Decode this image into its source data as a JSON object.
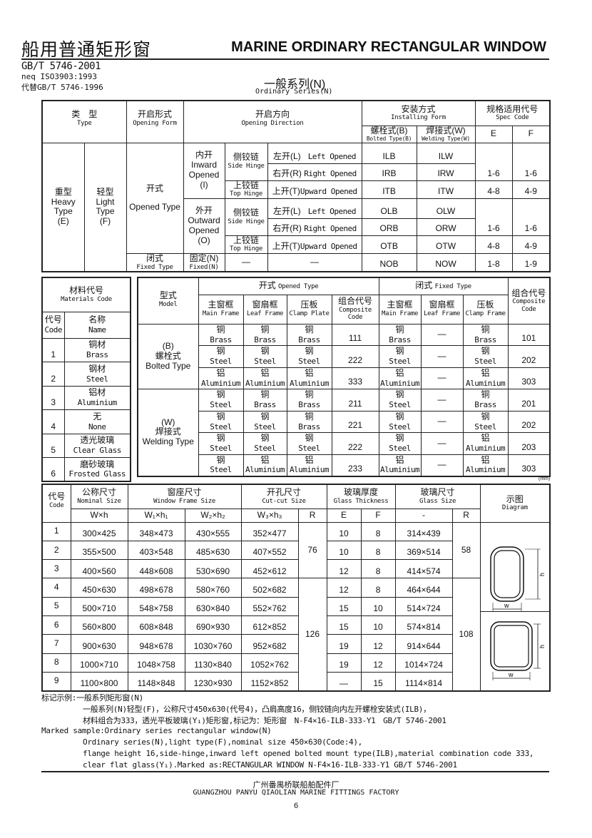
{
  "header": {
    "title_cn": "船用普通矩形窗",
    "title_en": "MARINE ORDINARY RECTANGULAR WINDOW",
    "standard": "GB/T 5746-2001",
    "neq": "neq ISO3903:1993",
    "replaces": "代替GB/T 5746-1996",
    "series_cn": "一般系列(N)",
    "series_en": "Ordinary Series(N)"
  },
  "type_table": {
    "head": {
      "type_cn": "类　型",
      "type_en": "Type",
      "form_cn": "开启形式",
      "form_en": "Opening Form",
      "dir_cn": "开启方向",
      "dir_en": "Opening Direction",
      "install_cn": "安装方式",
      "install_en": "Installing Form",
      "bolted_cn": "螺栓式(B)",
      "bolted_en": "Bolted Type(B)",
      "welding_cn": "焊接式(W)",
      "welding_en": "Welding Type(W)",
      "spec_cn": "规格适用代号",
      "spec_en": "Spec Code",
      "e": "E",
      "f": "F"
    },
    "heavy": [
      "重型",
      "Heavy",
      "Type",
      "(E)"
    ],
    "light": [
      "轻型",
      "Light",
      "Type",
      "(F)"
    ],
    "opened": {
      "cn": "开式",
      "en": "Opened Type"
    },
    "fixed": {
      "cn": "闭式",
      "en": "Fixed Type"
    },
    "inward": [
      "内开",
      "Inward",
      "Opened",
      "(I)"
    ],
    "outward": [
      "外开",
      "Outward",
      "Opened",
      "(O)"
    ],
    "side_hinge": {
      "cn": "侧铰链",
      "en": "Side Hinge"
    },
    "top_hinge": {
      "cn": "上铰链",
      "en": "Top Hinge"
    },
    "rows": [
      {
        "dir_cn": "左开(L)",
        "dir_en": "Left Opened",
        "b": "ILB",
        "w": "ILW"
      },
      {
        "dir_cn": "右开(R)",
        "dir_en": "Right Opened",
        "b": "IRB",
        "w": "IRW"
      },
      {
        "dir_cn": "上开(T)",
        "dir_en": "Upward Opened",
        "b": "ITB",
        "w": "ITW"
      },
      {
        "dir_cn": "左开(L)",
        "dir_en": "Left Opened",
        "b": "OLB",
        "w": "OLW"
      },
      {
        "dir_cn": "右开(R)",
        "dir_en": "Right Opened",
        "b": "ORB",
        "w": "ORW"
      },
      {
        "dir_cn": "上开(T)",
        "dir_en": "Upward Opened",
        "b": "OTB",
        "w": "OTW"
      }
    ],
    "spec": [
      {
        "e": "1-6",
        "f": "1-6"
      },
      {
        "e": "4-8",
        "f": "4-9"
      },
      {
        "e": "1-6",
        "f": "1-6"
      },
      {
        "e": "4-8",
        "f": "4-9"
      }
    ],
    "fixed_row": {
      "mode_cn": "固定(N)",
      "mode_en": "Fixed(N)",
      "hinge": "—",
      "dir": "—",
      "b": "NOB",
      "w": "NOW",
      "e": "1-8",
      "f": "1-9"
    }
  },
  "materials": {
    "title_cn": "材料代号",
    "title_en": "Materials Code",
    "code_cn": "代号",
    "code_en": "Code",
    "name_cn": "名称",
    "name_en": "Name",
    "rows": [
      {
        "code": "1",
        "cn": "铜材",
        "en": "Brass"
      },
      {
        "code": "2",
        "cn": "钢材",
        "en": "Steel"
      },
      {
        "code": "3",
        "cn": "铝材",
        "en": "Aluminium"
      },
      {
        "code": "4",
        "cn": "无",
        "en": "None"
      },
      {
        "code": "5",
        "cn": "透光玻璃",
        "en": "Clear Glass"
      },
      {
        "code": "6",
        "cn": "磨砂玻璃",
        "en": "Frosted Glass"
      }
    ]
  },
  "composite": {
    "head": {
      "model_cn": "型式",
      "model_en": "Model",
      "opened": "开式",
      "opened_en": "Opened Type",
      "fixed": "闭式",
      "fixed_en": "Fixed Type",
      "main_cn": "主窗框",
      "main_en": "Main Frame",
      "leaf_cn": "窗扇框",
      "leaf_en": "Leaf Frame",
      "clamp_cn": "压板",
      "clamp_plate_en": "Clamp Plate",
      "clamp_frame_en": "Clamp Frame",
      "code_cn": "组合代号",
      "code_en1": "Composite",
      "code_en2": "Code"
    },
    "mat": {
      "brass": {
        "cn": "铜",
        "en": "Brass"
      },
      "steel": {
        "cn": "钢",
        "en": "Steel"
      },
      "aluminium": {
        "cn": "铝",
        "en": "Aluminium"
      },
      "none": {
        "cn": "—",
        "en": ""
      }
    },
    "groups": [
      {
        "label": [
          "(B)",
          "螺栓式",
          "Bolted Type"
        ],
        "rows": [
          {
            "open": [
              "brass",
              "brass",
              "brass"
            ],
            "open_code": "111",
            "fixed": [
              "brass",
              "none",
              "brass"
            ],
            "fixed_code": "101"
          },
          {
            "open": [
              "steel",
              "steel",
              "steel"
            ],
            "open_code": "222",
            "fixed": [
              "steel",
              "none",
              "steel"
            ],
            "fixed_code": "202"
          },
          {
            "open": [
              "aluminium",
              "aluminium",
              "aluminium"
            ],
            "open_code": "333",
            "fixed": [
              "aluminium",
              "none",
              "aluminium"
            ],
            "fixed_code": "303"
          }
        ]
      },
      {
        "label": [
          "(W)",
          "焊接式",
          "Welding Type"
        ],
        "rows": [
          {
            "open": [
              "steel",
              "brass",
              "brass"
            ],
            "open_code": "211",
            "fixed": [
              "steel",
              "none",
              "brass"
            ],
            "fixed_code": "201"
          },
          {
            "open": [
              "steel",
              "steel",
              "brass"
            ],
            "open_code": "221",
            "fixed": [
              "steel",
              "none",
              "steel"
            ],
            "fixed_code": "202"
          },
          {
            "open": [
              "steel",
              "steel",
              "steel"
            ],
            "open_code": "222",
            "fixed": [
              "steel",
              "none",
              "aluminium"
            ],
            "fixed_code": "203"
          },
          {
            "open": [
              "steel",
              "aluminium",
              "aluminium"
            ],
            "open_code": "233",
            "fixed": [
              "aluminium",
              "none",
              "aluminium"
            ],
            "fixed_code": "303"
          }
        ]
      }
    ],
    "unit": "(mm)"
  },
  "sizes": {
    "head": {
      "code_cn": "代号",
      "code_en": "Code",
      "nominal_cn": "公称尺寸",
      "nominal_en": "Nominal Size",
      "frame_cn": "窗座尺寸",
      "frame_en": "Window Frame Size",
      "cut_cn": "开孔尺寸",
      "cut_en": "Cut-cut Size",
      "thick_cn": "玻璃厚度",
      "thick_en": "Glass Thickness",
      "glass_cn": "玻璃尺寸",
      "glass_en": "Glass Size",
      "diagram_cn": "示图",
      "diagram_en": "Diagram",
      "wh": "W×h",
      "w1h1": "W₁×h₁",
      "w2h2": "W₂×h₂",
      "w3h3": "W₃×h₃",
      "r": "R",
      "e": "E",
      "f": "F",
      "dash": "-",
      "r2": "R"
    },
    "rows": [
      {
        "code": "1",
        "nominal": "300×425",
        "frame1": "348×473",
        "frame2": "430×555",
        "cut": "352×477",
        "e": "10",
        "f": "8",
        "glass": "314×439"
      },
      {
        "code": "2",
        "nominal": "355×500",
        "frame1": "403×548",
        "frame2": "485×630",
        "cut": "407×552",
        "e": "10",
        "f": "8",
        "glass": "369×514"
      },
      {
        "code": "3",
        "nominal": "400×560",
        "frame1": "448×608",
        "frame2": "530×690",
        "cut": "452×612",
        "e": "12",
        "f": "8",
        "glass": "414×574"
      },
      {
        "code": "4",
        "nominal": "450×630",
        "frame1": "498×678",
        "frame2": "580×760",
        "cut": "502×682",
        "e": "12",
        "f": "8",
        "glass": "464×644"
      },
      {
        "code": "5",
        "nominal": "500×710",
        "frame1": "548×758",
        "frame2": "630×840",
        "cut": "552×762",
        "e": "15",
        "f": "10",
        "glass": "514×724"
      },
      {
        "code": "6",
        "nominal": "560×800",
        "frame1": "608×848",
        "frame2": "690×930",
        "cut": "612×852",
        "e": "15",
        "f": "10",
        "glass": "574×814"
      },
      {
        "code": "7",
        "nominal": "900×630",
        "frame1": "948×678",
        "frame2": "1030×760",
        "cut": "952×682",
        "e": "19",
        "f": "12",
        "glass": "914×644"
      },
      {
        "code": "8",
        "nominal": "1000×710",
        "frame1": "1048×758",
        "frame2": "1130×840",
        "cut": "1052×762",
        "e": "19",
        "f": "12",
        "glass": "1014×724"
      },
      {
        "code": "9",
        "nominal": "1100×800",
        "frame1": "1148×848",
        "frame2": "1230×930",
        "cut": "1152×852",
        "e": "—",
        "f": "15",
        "glass": "1114×814"
      }
    ],
    "cut_r": [
      "76",
      "126"
    ],
    "glass_r": [
      "58",
      "108"
    ],
    "diagram_labels": {
      "h": "h",
      "w": "w"
    }
  },
  "notes": {
    "cn_title": "标记示例:一般系列矩形窗(N)",
    "cn_1": "一般系列(N)轻型(F)，公称尺寸450x630(代号4)，凸肩高度16，侧铰链向内左开螺栓安装式(ILB)，",
    "cn_2": "材料组合为333，透光平板玻璃(Y₁)矩形窗,标记为：矩形窗　N-F4×16-ILB-333-Y1　GB/T 5746-2001",
    "en_title": "Marked sample:Ordinary series rectangular window(N)",
    "en_1": "Ordinary series(N),light type(F),nominal size 450×630(Code:4),",
    "en_2": "flange height 16,side-hinge,inward left opened bolted mount type(ILB),material combination code 333,",
    "en_3": "clear flat glass(Y₁).Marked as:RECTANGULAR WINDOW  N-F4×16-ILB-333-Y1  GB/T 5746-2001"
  },
  "footer": {
    "factory_cn": "广州番禺桥联船舶配件厂",
    "factory_en": "GUANGZHOU PANYU QIAOLIAN MARINE FITTINGS FACTORY",
    "page": "6"
  }
}
